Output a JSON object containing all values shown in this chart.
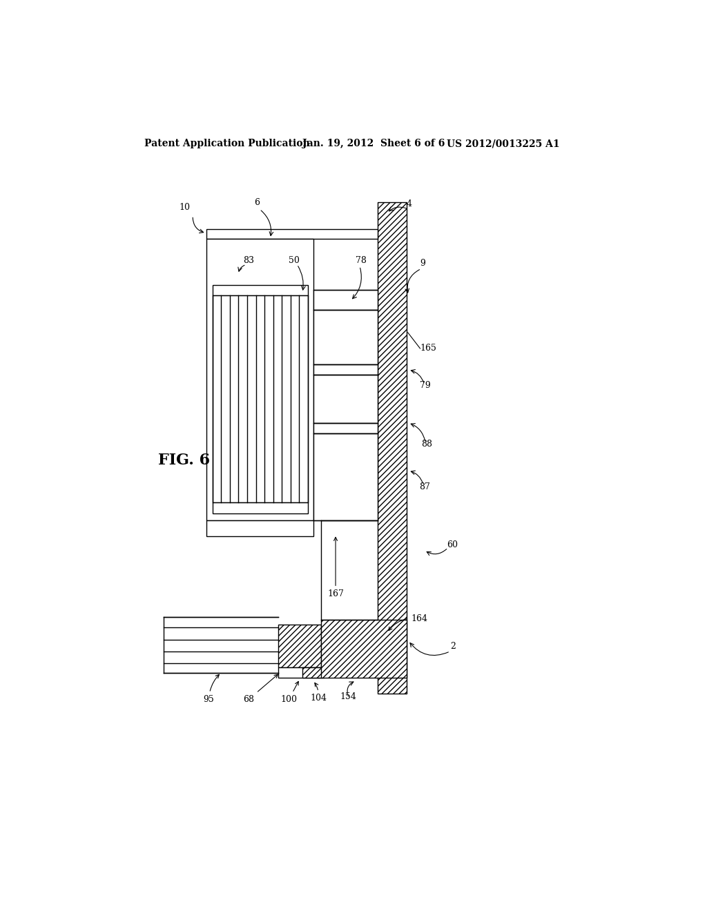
{
  "title_left": "Patent Application Publication",
  "title_center": "Jan. 19, 2012  Sheet 6 of 6",
  "title_right": "US 2012/0013225 A1",
  "fig_label": "FIG. 6",
  "background": "#ffffff",
  "line_color": "#000000",
  "lw": 1.0
}
